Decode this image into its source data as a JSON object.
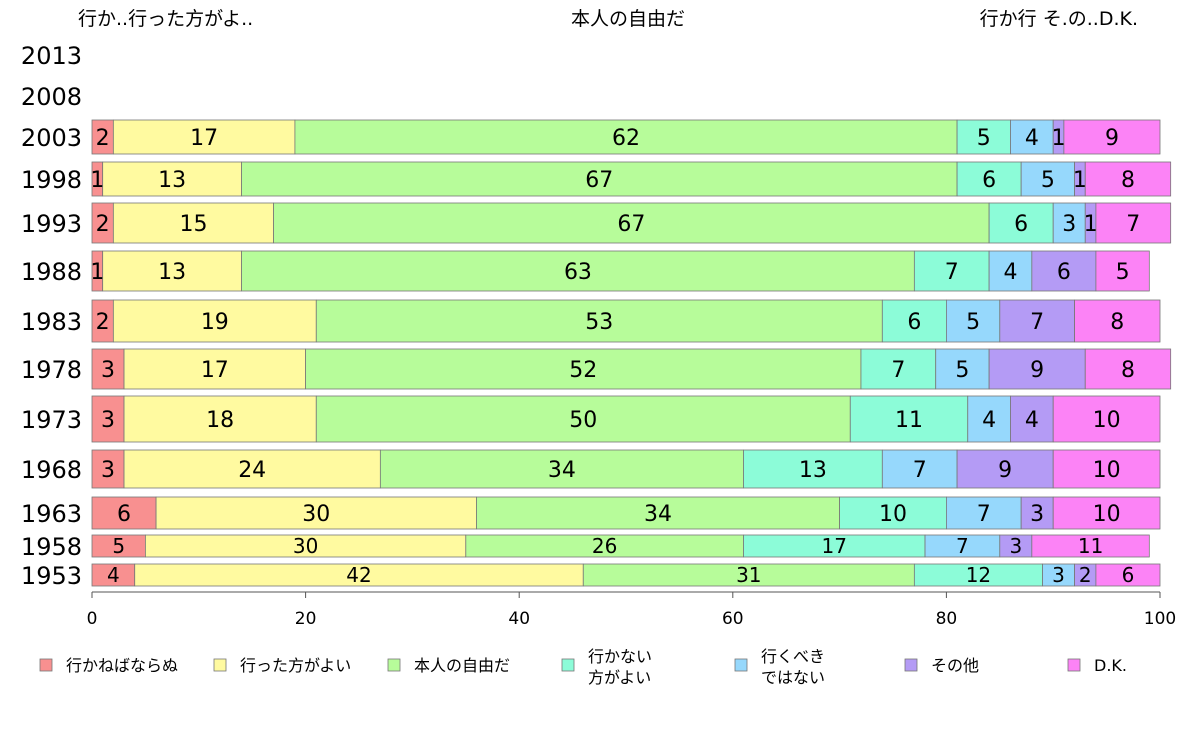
{
  "chart_data": {
    "type": "bar",
    "orientation": "horizontal",
    "stacked": true,
    "top_labels": [
      "行か..行った方がよ..",
      "本人の自由だ",
      "行か行 そ.の..D.K."
    ],
    "categories": [
      "2013",
      "2008",
      "2003",
      "1998",
      "1993",
      "1988",
      "1983",
      "1978",
      "1973",
      "1968",
      "1963",
      "1958",
      "1953"
    ],
    "series": [
      {
        "name": "行かねばならぬ",
        "color": "#f89090",
        "values": [
          null,
          null,
          2,
          1,
          2,
          1,
          2,
          3,
          3,
          3,
          6,
          5,
          4
        ]
      },
      {
        "name": "行った方がよい",
        "color": "#fffaa0",
        "values": [
          null,
          null,
          17,
          13,
          15,
          13,
          19,
          17,
          18,
          24,
          30,
          30,
          42
        ]
      },
      {
        "name": "本人の自由だ",
        "color": "#b7fc9a",
        "values": [
          null,
          null,
          62,
          67,
          67,
          63,
          53,
          52,
          50,
          34,
          34,
          26,
          31
        ]
      },
      {
        "name": "行かない\n方がよい",
        "color": "#8cfcd8",
        "values": [
          null,
          null,
          5,
          6,
          6,
          7,
          6,
          7,
          11,
          13,
          10,
          17,
          12
        ]
      },
      {
        "name": "行くべき\nではない",
        "color": "#96d8fc",
        "values": [
          null,
          null,
          4,
          5,
          3,
          4,
          5,
          5,
          4,
          7,
          7,
          7,
          3
        ]
      },
      {
        "name": "その他",
        "color": "#b49bf5",
        "values": [
          null,
          null,
          1,
          1,
          1,
          6,
          7,
          9,
          4,
          9,
          3,
          3,
          2
        ]
      },
      {
        "name": "D.K.",
        "color": "#fc83f6",
        "values": [
          null,
          null,
          9,
          8,
          7,
          5,
          8,
          8,
          10,
          10,
          10,
          11,
          6
        ]
      }
    ],
    "xlim": [
      0,
      100
    ],
    "xticks": [
      0,
      20,
      40,
      60,
      80,
      100
    ],
    "legend_position": "bottom",
    "grid": false
  }
}
